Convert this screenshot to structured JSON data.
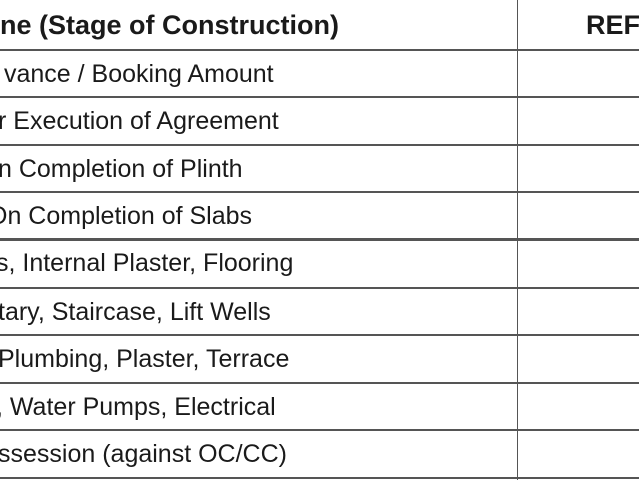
{
  "table": {
    "header": [
      "ne (Stage of Construction)",
      "REF"
    ],
    "rows": [
      [
        "vance / Booking Amount"
      ],
      [
        "r Execution of Agreement"
      ],
      [
        "n Completion of Plinth"
      ],
      [
        "On Completion of Slabs"
      ],
      [
        "s, Internal Plaster, Flooring"
      ],
      [
        "tary, Staircase, Lift Wells"
      ],
      [
        "Plumbing, Plaster, Terrace"
      ],
      [
        ", Water Pumps, Electrical"
      ],
      [
        "ssession (against OC/CC)"
      ]
    ]
  }
}
